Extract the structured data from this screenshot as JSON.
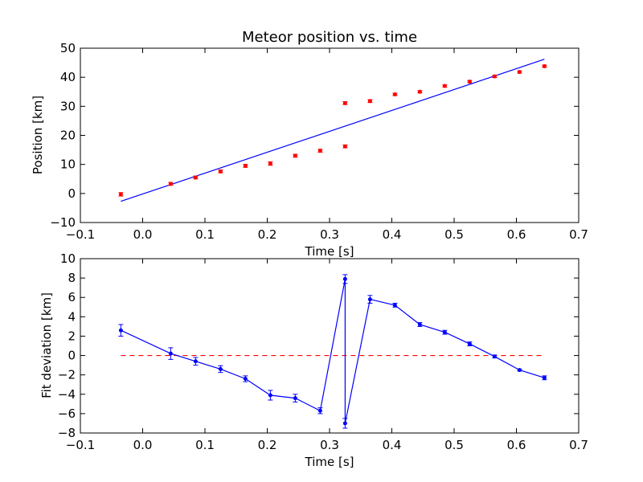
{
  "chart_data": [
    {
      "type": "scatter",
      "title": "Meteor position vs. time",
      "xlabel": "Time [s]",
      "ylabel": "Position [km]",
      "xlim": [
        -0.1,
        0.7
      ],
      "ylim": [
        -10,
        50
      ],
      "xticks": [
        "−0.1",
        "0.0",
        "0.1",
        "0.2",
        "0.3",
        "0.4",
        "0.5",
        "0.6",
        "0.7"
      ],
      "xtick_values": [
        -0.1,
        0.0,
        0.1,
        0.2,
        0.3,
        0.4,
        0.5,
        0.6,
        0.7
      ],
      "yticks": [
        "−10",
        "0",
        "10",
        "20",
        "30",
        "40",
        "50"
      ],
      "ytick_values": [
        -10,
        0,
        10,
        20,
        30,
        40,
        50
      ],
      "points_color": "#ff0000",
      "fit_color": "#0000ff",
      "points": [
        {
          "x": -0.035,
          "y": -0.3,
          "err": 0.6
        },
        {
          "x": 0.045,
          "y": 3.3,
          "err": 0.5
        },
        {
          "x": 0.085,
          "y": 5.5,
          "err": 0.5
        },
        {
          "x": 0.125,
          "y": 7.6,
          "err": 0.5
        },
        {
          "x": 0.165,
          "y": 9.5,
          "err": 0.5
        },
        {
          "x": 0.205,
          "y": 10.3,
          "err": 0.6
        },
        {
          "x": 0.245,
          "y": 13.0,
          "err": 0.5
        },
        {
          "x": 0.285,
          "y": 14.7,
          "err": 0.5
        },
        {
          "x": 0.325,
          "y": 16.2,
          "err": 0.5
        },
        {
          "x": 0.325,
          "y": 31.1,
          "err": 0.5
        },
        {
          "x": 0.365,
          "y": 31.8,
          "err": 0.5
        },
        {
          "x": 0.405,
          "y": 34.1,
          "err": 0.4
        },
        {
          "x": 0.445,
          "y": 35.0,
          "err": 0.4
        },
        {
          "x": 0.485,
          "y": 37.0,
          "err": 0.4
        },
        {
          "x": 0.525,
          "y": 38.5,
          "err": 0.4
        },
        {
          "x": 0.565,
          "y": 40.3,
          "err": 0.4
        },
        {
          "x": 0.605,
          "y": 41.8,
          "err": 0.4
        },
        {
          "x": 0.645,
          "y": 43.8,
          "err": 0.4
        }
      ],
      "fit_line": {
        "x": [
          -0.035,
          0.645
        ],
        "y": [
          -2.7,
          46.2
        ]
      }
    },
    {
      "type": "line",
      "title": "",
      "xlabel": "Time [s]",
      "ylabel": "Fit deviation [km]",
      "xlim": [
        -0.1,
        0.7
      ],
      "ylim": [
        -8,
        10
      ],
      "xticks": [
        "−0.1",
        "0.0",
        "0.1",
        "0.2",
        "0.3",
        "0.4",
        "0.5",
        "0.6",
        "0.7"
      ],
      "xtick_values": [
        -0.1,
        0.0,
        0.1,
        0.2,
        0.3,
        0.4,
        0.5,
        0.6,
        0.7
      ],
      "yticks": [
        "−8",
        "−6",
        "−4",
        "−2",
        "0",
        "2",
        "4",
        "6",
        "8",
        "10"
      ],
      "ytick_values": [
        -8,
        -6,
        -4,
        -2,
        0,
        2,
        4,
        6,
        8,
        10
      ],
      "series_color": "#0000ff",
      "zero_line_color": "#ff0000",
      "zero_line": {
        "x": [
          -0.035,
          0.645
        ],
        "y": 0
      },
      "points": [
        {
          "x": -0.035,
          "y": 2.6,
          "err": 0.6
        },
        {
          "x": 0.045,
          "y": 0.2,
          "err": 0.6
        },
        {
          "x": 0.085,
          "y": -0.6,
          "err": 0.4
        },
        {
          "x": 0.125,
          "y": -1.4,
          "err": 0.35
        },
        {
          "x": 0.165,
          "y": -2.4,
          "err": 0.3
        },
        {
          "x": 0.205,
          "y": -4.1,
          "err": 0.5
        },
        {
          "x": 0.245,
          "y": -4.4,
          "err": 0.4
        },
        {
          "x": 0.285,
          "y": -5.7,
          "err": 0.3
        },
        {
          "x": 0.325,
          "y": 7.9,
          "err": 0.45
        },
        {
          "x": 0.325,
          "y": -7.0,
          "err": 0.5
        },
        {
          "x": 0.365,
          "y": 5.8,
          "err": 0.4
        },
        {
          "x": 0.405,
          "y": 5.2,
          "err": 0.2
        },
        {
          "x": 0.445,
          "y": 3.2,
          "err": 0.2
        },
        {
          "x": 0.485,
          "y": 2.4,
          "err": 0.2
        },
        {
          "x": 0.525,
          "y": 1.2,
          "err": 0.2
        },
        {
          "x": 0.565,
          "y": -0.1,
          "err": 0.15
        },
        {
          "x": 0.605,
          "y": -1.5,
          "err": 0.1
        },
        {
          "x": 0.645,
          "y": -2.3,
          "err": 0.2
        }
      ]
    }
  ]
}
